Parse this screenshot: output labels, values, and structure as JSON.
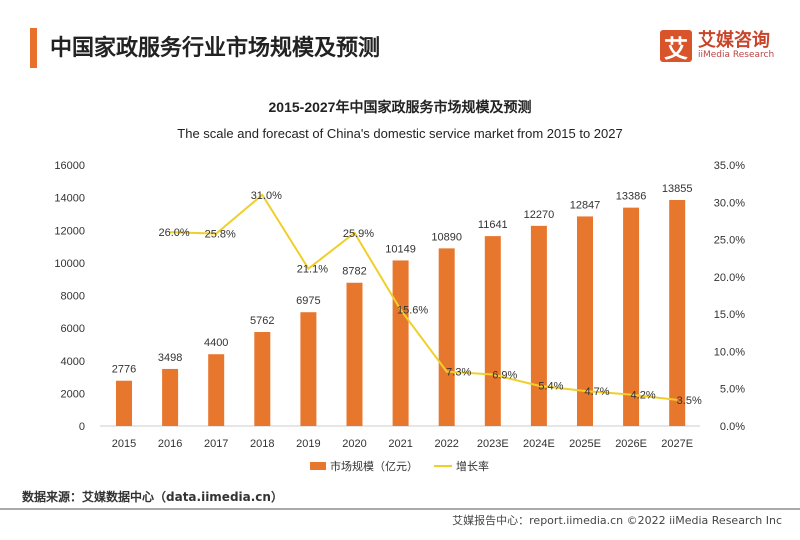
{
  "header": {
    "title": "中国家政服务行业市场规模及预测",
    "logo_glyph": "艾",
    "logo_cn": "艾媒咨询",
    "logo_en": "iiMedia Research"
  },
  "chart_data": {
    "type": "bar+line",
    "title": "2015-2027年中国家政服务市场规模及预测",
    "subtitle": "The scale and forecast of China's domestic service market from 2015 to 2027",
    "categories": [
      "2015",
      "2016",
      "2017",
      "2018",
      "2019",
      "2020",
      "2021",
      "2022",
      "2023E",
      "2024E",
      "2025E",
      "2026E",
      "2027E"
    ],
    "series": [
      {
        "name": "市场规模（亿元）",
        "type": "bar",
        "axis": "left",
        "color": "#e8772e",
        "values": [
          2776,
          3498,
          4400,
          5762,
          6975,
          8782,
          10149,
          10890,
          11641,
          12270,
          12847,
          13386,
          13855
        ]
      },
      {
        "name": "增长率",
        "type": "line",
        "axis": "right",
        "color": "#f0cf2a",
        "values": [
          null,
          26.0,
          25.8,
          31.0,
          21.1,
          25.9,
          15.6,
          7.3,
          6.9,
          5.4,
          4.7,
          4.2,
          3.5
        ]
      }
    ],
    "left_ylim": [
      0,
      16000
    ],
    "left_ticks": [
      "0",
      "2000",
      "4000",
      "6000",
      "8000",
      "10000",
      "12000",
      "14000",
      "16000"
    ],
    "right_ylim": [
      0,
      35
    ],
    "right_ticks": [
      "0.0%",
      "5.0%",
      "10.0%",
      "15.0%",
      "20.0%",
      "25.0%",
      "30.0%",
      "35.0%"
    ],
    "legend_position": "bottom"
  },
  "source": "数据来源：艾媒数据中心（data.iimedia.cn）",
  "footer": "艾媒报告中心：report.iimedia.cn ©2022 iiMedia Research Inc"
}
